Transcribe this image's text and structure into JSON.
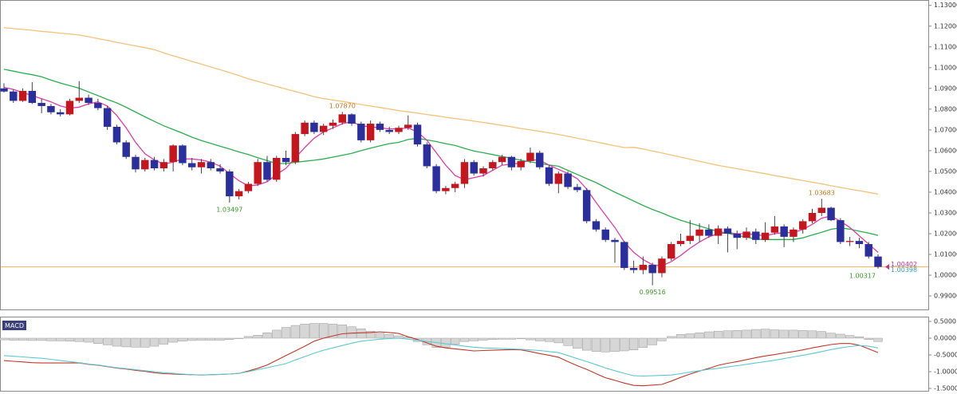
{
  "chart_data": [
    {
      "type": "candlestick",
      "up_color": "#c4161c",
      "down_color": "#2b2f9e",
      "wick_color": "#444444",
      "open": [
        1.09,
        1.0885,
        1.084,
        1.0888,
        1.083,
        1.0815,
        1.0785,
        1.0775,
        1.084,
        1.0855,
        1.083,
        1.0805,
        1.0715,
        1.064,
        1.057,
        1.051,
        1.0555,
        1.0515,
        1.0545,
        1.0625,
        1.054,
        1.052,
        1.0545,
        1.0515,
        1.05,
        1.038,
        1.0405,
        1.044,
        1.0545,
        1.046,
        1.0565,
        1.0545,
        1.068,
        1.0735,
        1.069,
        1.072,
        1.0735,
        1.0775,
        1.073,
        1.065,
        1.073,
        1.07,
        1.069,
        1.071,
        1.0725,
        1.063,
        1.0525,
        1.0405,
        1.042,
        1.044,
        1.0545,
        1.049,
        1.0515,
        1.0545,
        1.057,
        1.052,
        1.055,
        1.059,
        1.052,
        1.044,
        1.049,
        1.0425,
        1.041,
        1.026,
        1.022,
        1.017,
        1.016,
        1.0035,
        1.0025,
        1.005,
        1.001,
        1.008,
        1.015,
        1.0165,
        1.019,
        1.022,
        1.019,
        1.0225,
        1.02,
        1.018,
        1.021,
        1.017,
        1.0205,
        1.0235,
        1.0185,
        1.022,
        1.026,
        1.03,
        1.0325,
        1.0265,
        1.016,
        1.0165,
        1.015,
        1.009
      ],
      "high": [
        1.0925,
        1.0895,
        1.09,
        1.093,
        1.085,
        1.0825,
        1.08,
        1.085,
        1.0935,
        1.087,
        1.085,
        1.0815,
        1.0725,
        1.065,
        1.058,
        1.0565,
        1.057,
        1.056,
        1.063,
        1.063,
        1.0565,
        1.056,
        1.056,
        1.0535,
        1.051,
        1.0415,
        1.045,
        1.056,
        1.0575,
        1.0575,
        1.06,
        1.069,
        1.0745,
        1.0745,
        1.073,
        1.075,
        1.0787,
        1.078,
        1.074,
        1.0745,
        1.074,
        1.0715,
        1.072,
        1.077,
        1.0735,
        1.064,
        1.0535,
        1.043,
        1.045,
        1.056,
        1.0555,
        1.0525,
        1.0555,
        1.058,
        1.0575,
        1.056,
        1.0615,
        1.06,
        1.053,
        1.05,
        1.05,
        1.044,
        1.042,
        1.027,
        1.023,
        1.018,
        1.0165,
        1.007,
        1.009,
        1.006,
        1.009,
        1.016,
        1.02,
        1.0265,
        1.025,
        1.0245,
        1.024,
        1.0235,
        1.0215,
        1.023,
        1.0225,
        1.0255,
        1.0285,
        1.0245,
        1.023,
        1.027,
        1.032,
        1.03683,
        1.033,
        1.0275,
        1.0185,
        1.018,
        1.016,
        1.01
      ],
      "low": [
        1.088,
        1.083,
        1.0835,
        1.0825,
        1.078,
        1.0775,
        1.0765,
        1.077,
        1.083,
        1.082,
        1.0795,
        1.07,
        1.063,
        1.056,
        1.0495,
        1.05,
        1.0505,
        1.05,
        1.05,
        1.053,
        1.0505,
        1.049,
        1.0505,
        1.049,
        1.03497,
        1.0365,
        1.0395,
        1.043,
        1.045,
        1.045,
        1.053,
        1.0535,
        1.067,
        1.068,
        1.0675,
        1.0705,
        1.0725,
        1.072,
        1.064,
        1.064,
        1.069,
        1.068,
        1.068,
        1.07,
        1.062,
        1.0515,
        1.0395,
        1.039,
        1.04,
        1.042,
        1.048,
        1.0475,
        1.0505,
        1.053,
        1.0505,
        1.0505,
        1.054,
        1.051,
        1.043,
        1.0395,
        1.0415,
        1.04,
        1.025,
        1.021,
        1.016,
        1.006,
        1.0025,
        1.001,
        1.0005,
        0.99516,
        0.999,
        1.007,
        1.014,
        1.015,
        1.016,
        1.018,
        1.015,
        1.011,
        1.0125,
        1.017,
        1.015,
        1.016,
        1.0195,
        1.0135,
        1.016,
        1.02,
        1.025,
        1.0285,
        1.026,
        1.015,
        1.014,
        1.013,
        1.008,
        1.00317
      ],
      "close": [
        1.0885,
        1.084,
        1.0888,
        1.083,
        1.0815,
        1.0785,
        1.0775,
        1.084,
        1.0855,
        1.083,
        1.0805,
        1.0715,
        1.064,
        1.057,
        1.051,
        1.0555,
        1.0515,
        1.0545,
        1.0625,
        1.054,
        1.052,
        1.0545,
        1.0515,
        1.05,
        1.038,
        1.0405,
        1.044,
        1.0545,
        1.046,
        1.0565,
        1.0545,
        1.068,
        1.0735,
        1.069,
        1.072,
        1.0735,
        1.0775,
        1.073,
        1.065,
        1.073,
        1.07,
        1.069,
        1.071,
        1.0725,
        1.063,
        1.0525,
        1.0405,
        1.042,
        1.044,
        1.0545,
        1.049,
        1.0515,
        1.0545,
        1.057,
        1.052,
        1.055,
        1.059,
        1.052,
        1.044,
        1.049,
        1.0425,
        1.041,
        1.026,
        1.022,
        1.017,
        1.016,
        1.0035,
        1.0025,
        1.005,
        1.001,
        1.008,
        1.015,
        1.0165,
        1.019,
        1.022,
        1.019,
        1.0225,
        1.02,
        1.018,
        1.021,
        1.017,
        1.0205,
        1.0235,
        1.0185,
        1.022,
        1.026,
        1.03,
        1.0325,
        1.0265,
        1.016,
        1.0165,
        1.015,
        1.009,
        1.00402
      ],
      "lines": [
        {
          "color": "#f4c27a",
          "values": [
            1.1193,
            1.1188,
            1.1184,
            1.118,
            1.1175,
            1.1171,
            1.1166,
            1.1162,
            1.1157,
            1.1149,
            1.114,
            1.1131,
            1.1122,
            1.1113,
            1.1105,
            1.1096,
            1.1087,
            1.1071,
            1.1057,
            1.1044,
            1.103,
            1.1017,
            1.1003,
            1.099,
            1.0976,
            1.0962,
            1.0946,
            1.0934,
            1.0921,
            1.0909,
            1.0897,
            1.0885,
            1.0873,
            1.086,
            1.0851,
            1.0844,
            1.0837,
            1.083,
            1.0822,
            1.0815,
            1.0808,
            1.0801,
            1.0793,
            1.0787,
            1.0781,
            1.0774,
            1.0768,
            1.0761,
            1.0755,
            1.0749,
            1.0742,
            1.0736,
            1.0729,
            1.0722,
            1.0715,
            1.0707,
            1.07,
            1.0693,
            1.0686,
            1.0678,
            1.0669,
            1.066,
            1.0651,
            1.0642,
            1.0633,
            1.0624,
            1.0615,
            1.0616,
            1.0608,
            1.0598,
            1.0589,
            1.0579,
            1.0569,
            1.0559,
            1.0549,
            1.0539,
            1.0529,
            1.0521,
            1.0513,
            1.0505,
            1.0497,
            1.0489,
            1.048,
            1.0472,
            1.0464,
            1.0456,
            1.0448,
            1.044,
            1.0431,
            1.0423,
            1.0415,
            1.0407,
            1.0399,
            1.0391
          ]
        },
        {
          "color": "#2bb04f",
          "values": [
            1.0992,
            1.0983,
            1.0974,
            1.0966,
            1.0956,
            1.094,
            1.0926,
            1.0913,
            1.0901,
            1.0883,
            1.0865,
            1.0847,
            1.083,
            1.0809,
            1.0786,
            1.0763,
            1.0741,
            1.072,
            1.0702,
            1.0684,
            1.0665,
            1.0649,
            1.0635,
            1.0621,
            1.0608,
            1.0594,
            1.0581,
            1.0566,
            1.0552,
            1.0538,
            1.0538,
            1.0544,
            1.0549,
            1.0554,
            1.056,
            1.0569,
            1.0578,
            1.0587,
            1.06,
            1.0612,
            1.0623,
            1.0634,
            1.064,
            1.0654,
            1.066,
            1.0652,
            1.0644,
            1.0634,
            1.0625,
            1.0611,
            1.0598,
            1.059,
            1.0581,
            1.0572,
            1.0563,
            1.0554,
            1.0546,
            1.0539,
            1.0531,
            1.0525,
            1.0505,
            1.0485,
            1.0465,
            1.0446,
            1.0423,
            1.04,
            1.0379,
            1.0357,
            1.0336,
            1.0317,
            1.03,
            1.0281,
            1.0265,
            1.0251,
            1.0237,
            1.0223,
            1.0211,
            1.0202,
            1.0192,
            1.0184,
            1.0174,
            1.0172,
            1.0172,
            1.0172,
            1.0172,
            1.018,
            1.0194,
            1.0207,
            1.0221,
            1.0228,
            1.0222,
            1.0212,
            1.0203,
            1.0192
          ]
        },
        {
          "color": "#e03da6",
          "values": [
            1.0905,
            1.0895,
            1.088,
            1.0865,
            1.085,
            1.0835,
            1.0815,
            1.0805,
            1.081,
            1.0825,
            1.0835,
            1.0815,
            1.077,
            1.071,
            1.064,
            1.0585,
            1.0555,
            1.0535,
            1.0545,
            1.056,
            1.056,
            1.0555,
            1.0545,
            1.0525,
            1.049,
            1.0455,
            1.043,
            1.0435,
            1.045,
            1.0485,
            1.0515,
            1.0565,
            1.0615,
            1.066,
            1.069,
            1.071,
            1.073,
            1.074,
            1.072,
            1.0715,
            1.071,
            1.0705,
            1.0705,
            1.071,
            1.069,
            1.065,
            1.059,
            1.053,
            1.048,
            1.046,
            1.047,
            1.048,
            1.0505,
            1.053,
            1.0535,
            1.054,
            1.0555,
            1.0555,
            1.053,
            1.051,
            1.049,
            1.0465,
            1.0415,
            1.035,
            1.029,
            1.023,
            1.016,
            1.011,
            1.0075,
            1.005,
            1.0045,
            1.0065,
            1.0095,
            1.013,
            1.016,
            1.0185,
            1.02,
            1.0205,
            1.02,
            1.02,
            1.0195,
            1.019,
            1.02,
            1.0205,
            1.0205,
            1.022,
            1.0245,
            1.0275,
            1.0285,
            1.026,
            1.023,
            1.019,
            1.015,
            1.011
          ]
        }
      ],
      "ylim": [
        0.9835,
        1.1322
      ],
      "yticks": [
        {
          "value": 0.99,
          "label": "0.99000"
        },
        {
          "value": 1,
          "label": "1.00000"
        },
        {
          "value": 1.01,
          "label": "1.01000"
        },
        {
          "value": 1.02,
          "label": "1.02000"
        },
        {
          "value": 1.03,
          "label": "1.03000"
        },
        {
          "value": 1.04,
          "label": "1.04000"
        },
        {
          "value": 1.05,
          "label": "1.05000"
        },
        {
          "value": 1.06,
          "label": "1.06000"
        },
        {
          "value": 1.07,
          "label": "1.07000"
        },
        {
          "value": 1.08,
          "label": "1.08000"
        },
        {
          "value": 1.09,
          "label": "1.09000"
        },
        {
          "value": 1.1,
          "label": "1.10000"
        },
        {
          "value": 1.11,
          "label": "1.11000"
        },
        {
          "value": 1.12,
          "label": "1.12000"
        },
        {
          "value": 1.13,
          "label": "1.13000"
        }
      ],
      "annotations": [
        {
          "value": 1.0787,
          "label": "1.07870",
          "color": "#c8741c"
        },
        {
          "value": 1.03497,
          "label": "1.03497",
          "color": "#3a9a24"
        },
        {
          "value": 0.99516,
          "label": "0.99516",
          "color": "#3a9a24"
        },
        {
          "value": 1.03683,
          "label": "1.03683",
          "color": "#c8741c"
        },
        {
          "value": 1.00317,
          "label": "1.00317",
          "color": "#3a9a24"
        }
      ],
      "level_line": {
        "value": 1.00402,
        "color": "#f0b25a"
      },
      "price_labels": [
        {
          "value": 1.00402,
          "label": "1.00402",
          "color": "#c8308a"
        },
        {
          "value": 1.00398,
          "label": "1.00398",
          "color": "#2f9fc8"
        }
      ]
    },
    {
      "type": "macd",
      "title": "MACD",
      "histogram": {
        "color": "#d6d6d6",
        "values": [
          -0.05,
          -0.06,
          -0.06,
          -0.07,
          -0.07,
          -0.08,
          -0.08,
          -0.09,
          -0.1,
          -0.12,
          -0.16,
          -0.2,
          -0.24,
          -0.26,
          -0.27,
          -0.27,
          -0.24,
          -0.18,
          -0.12,
          -0.09,
          -0.07,
          -0.06,
          -0.06,
          -0.06,
          -0.04,
          -0.01,
          0.05,
          0.09,
          0.16,
          0.24,
          0.32,
          0.38,
          0.42,
          0.44,
          0.44,
          0.42,
          0.4,
          0.34,
          0.28,
          0.21,
          0.15,
          0.11,
          0.07,
          0.03,
          -0.1,
          -0.2,
          -0.28,
          -0.27,
          -0.18,
          -0.1,
          -0.08,
          -0.06,
          -0.04,
          -0.03,
          -0.03,
          -0.02,
          -0.05,
          -0.08,
          -0.1,
          -0.14,
          -0.22,
          -0.3,
          -0.36,
          -0.4,
          -0.41,
          -0.4,
          -0.38,
          -0.35,
          -0.28,
          -0.2,
          -0.08,
          0.05,
          0.11,
          0.13,
          0.16,
          0.19,
          0.21,
          0.22,
          0.23,
          0.24,
          0.26,
          0.27,
          0.25,
          0.24,
          0.24,
          0.23,
          0.22,
          0.2,
          0.15,
          0.12,
          0.08,
          0.04,
          -0.04,
          -0.1
        ]
      },
      "series": [
        {
          "color": "#c0392b",
          "values": [
            -0.67,
            -0.69,
            -0.71,
            -0.73,
            -0.74,
            -0.74,
            -0.74,
            -0.74,
            -0.74,
            -0.78,
            -0.81,
            -0.85,
            -0.89,
            -0.92,
            -0.96,
            -0.99,
            -1.03,
            -1.06,
            -1.07,
            -1.08,
            -1.09,
            -1.1,
            -1.09,
            -1.08,
            -1.07,
            -1.05,
            -0.98,
            -0.9,
            -0.8,
            -0.66,
            -0.52,
            -0.38,
            -0.24,
            -0.09,
            0.0,
            0.07,
            0.13,
            0.15,
            0.16,
            0.17,
            0.19,
            0.17,
            0.14,
            0.04,
            -0.04,
            -0.14,
            -0.24,
            -0.29,
            -0.32,
            -0.35,
            -0.38,
            -0.37,
            -0.36,
            -0.35,
            -0.34,
            -0.35,
            -0.4,
            -0.46,
            -0.51,
            -0.57,
            -0.7,
            -0.82,
            -0.93,
            -1.06,
            -1.18,
            -1.26,
            -1.34,
            -1.41,
            -1.42,
            -1.4,
            -1.38,
            -1.28,
            -1.17,
            -1.07,
            -0.98,
            -0.9,
            -0.81,
            -0.75,
            -0.7,
            -0.64,
            -0.58,
            -0.53,
            -0.49,
            -0.44,
            -0.4,
            -0.35,
            -0.29,
            -0.24,
            -0.19,
            -0.16,
            -0.16,
            -0.21,
            -0.32,
            -0.43
          ]
        },
        {
          "color": "#5cc9d2",
          "values": [
            -0.52,
            -0.54,
            -0.56,
            -0.58,
            -0.6,
            -0.63,
            -0.67,
            -0.7,
            -0.73,
            -0.77,
            -0.8,
            -0.84,
            -0.88,
            -0.91,
            -0.94,
            -0.97,
            -1.0,
            -1.03,
            -1.05,
            -1.07,
            -1.09,
            -1.1,
            -1.09,
            -1.08,
            -1.07,
            -1.05,
            -1.0,
            -0.94,
            -0.88,
            -0.82,
            -0.76,
            -0.65,
            -0.55,
            -0.45,
            -0.36,
            -0.29,
            -0.22,
            -0.15,
            -0.09,
            -0.06,
            -0.03,
            -0.01,
            0.0,
            -0.03,
            -0.06,
            -0.1,
            -0.13,
            -0.17,
            -0.2,
            -0.24,
            -0.27,
            -0.29,
            -0.3,
            -0.31,
            -0.32,
            -0.33,
            -0.35,
            -0.37,
            -0.4,
            -0.43,
            -0.52,
            -0.61,
            -0.7,
            -0.79,
            -0.89,
            -0.97,
            -1.05,
            -1.12,
            -1.13,
            -1.12,
            -1.11,
            -1.1,
            -1.06,
            -1.01,
            -0.97,
            -0.93,
            -0.9,
            -0.86,
            -0.82,
            -0.78,
            -0.74,
            -0.7,
            -0.66,
            -0.61,
            -0.56,
            -0.51,
            -0.46,
            -0.4,
            -0.34,
            -0.29,
            -0.25,
            -0.22,
            -0.24,
            -0.29
          ]
        }
      ],
      "ylim": [
        -1.571,
        0.619
      ],
      "yticks": [
        {
          "value": -1.5,
          "label": "-1.5000"
        },
        {
          "value": -1,
          "label": "-1.0000"
        },
        {
          "value": -0.5,
          "label": "-0.5000"
        },
        {
          "value": 0,
          "label": "0.0000"
        },
        {
          "value": 0.5,
          "label": "0.5000"
        }
      ]
    }
  ]
}
